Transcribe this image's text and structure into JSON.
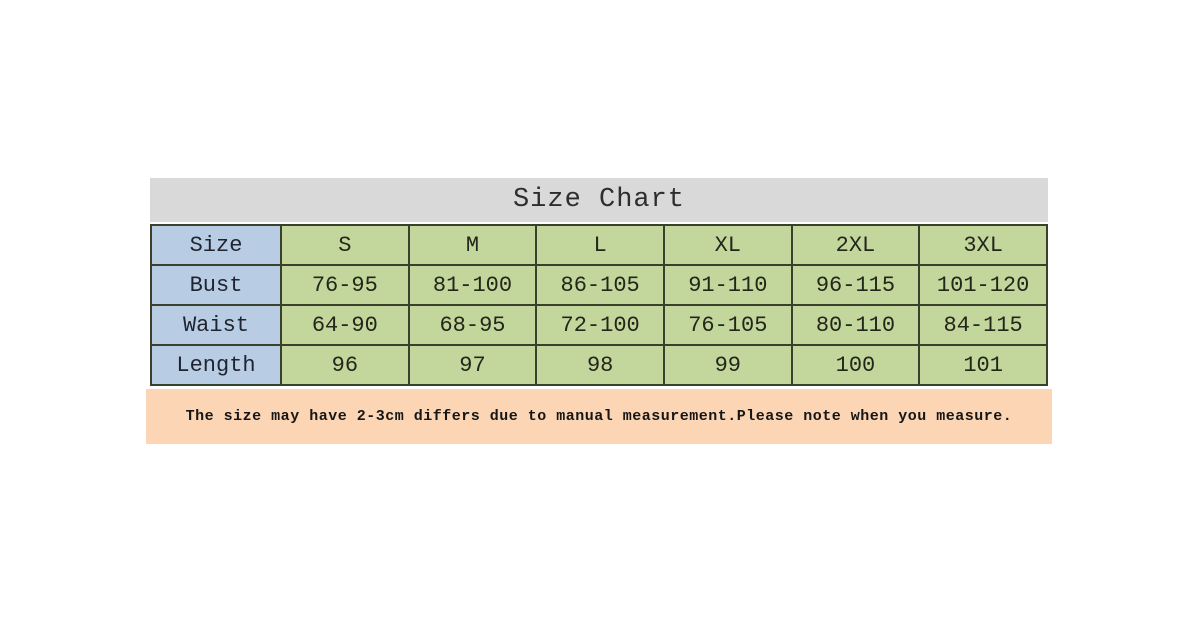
{
  "chart_data": {
    "type": "table",
    "title": "Size Chart",
    "header": [
      "Size",
      "S",
      "M",
      "L",
      "XL",
      "2XL",
      "3XL"
    ],
    "rows": [
      {
        "label": "Bust",
        "values": [
          "76-95",
          "81-100",
          "86-105",
          "91-110",
          "96-115",
          "101-120"
        ]
      },
      {
        "label": "Waist",
        "values": [
          "64-90",
          "68-95",
          "72-100",
          "76-105",
          "80-110",
          "84-115"
        ]
      },
      {
        "label": "Length",
        "values": [
          "96",
          "97",
          "98",
          "99",
          "100",
          "101"
        ]
      }
    ],
    "note": "The size may have 2-3cm differs due to manual measurement.Please note when you measure."
  },
  "colors": {
    "title_bar_bg": "#d9d9d9",
    "label_column_bg": "#b8cce4",
    "data_cell_bg": "#c3d69b",
    "note_bar_bg": "#fcd5b4",
    "table_border": "#39412a",
    "text": "#23261b"
  }
}
